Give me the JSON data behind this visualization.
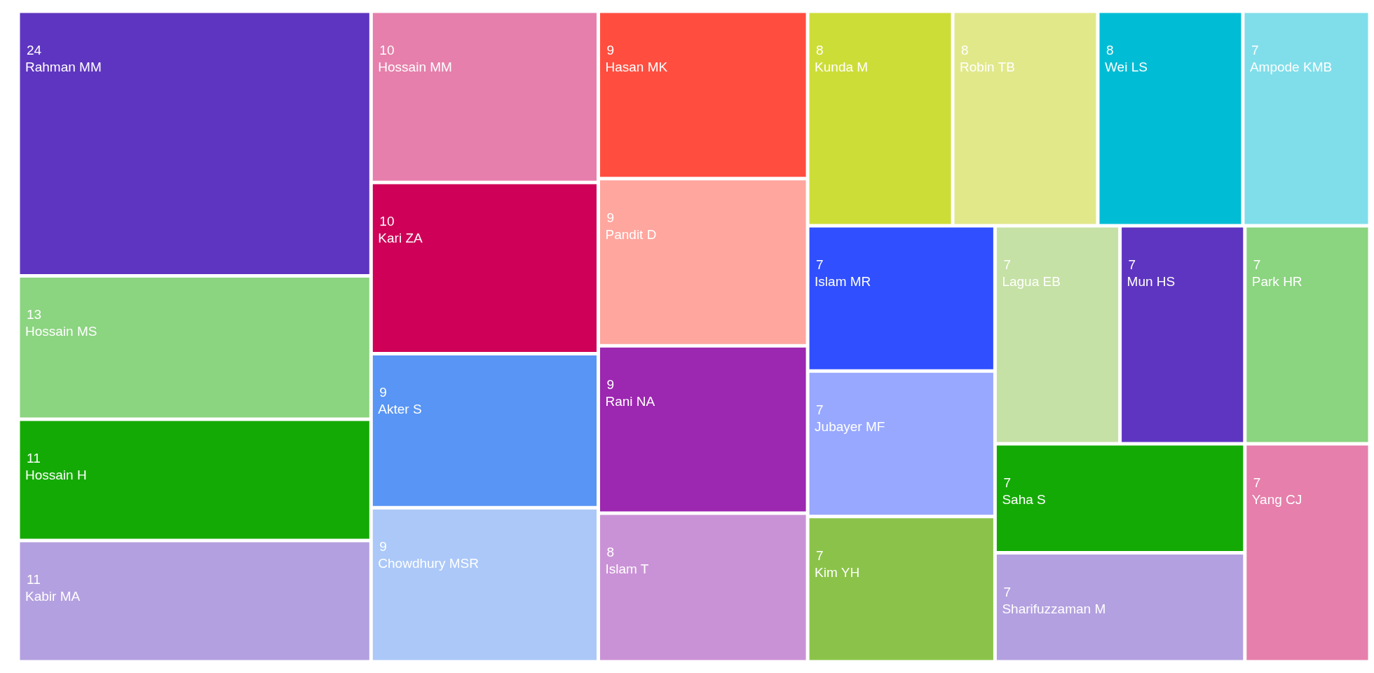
{
  "chart_data": {
    "type": "other",
    "data_labels": true,
    "categories": [
      "Rahman MM",
      "Hossain MS",
      "Hossain H",
      "Kabir MA",
      "Hossain MM",
      "Kari ZA",
      "Akter S",
      "Chowdhury MSR",
      "Hasan MK",
      "Pandit D",
      "Rani NA",
      "Islam T",
      "Kunda M",
      "Robin TB",
      "Wei LS",
      "Ampode KMB",
      "Islam MR",
      "Jubayer MF",
      "Kim YH",
      "Lagua EB",
      "Mun HS",
      "Park HR",
      "Saha S",
      "Sharifuzzaman M",
      "Yang CJ"
    ],
    "values": [
      24,
      13,
      11,
      11,
      10,
      10,
      9,
      9,
      9,
      9,
      9,
      8,
      8,
      8,
      8,
      7,
      7,
      7,
      7,
      7,
      7,
      7,
      7,
      7,
      7
    ],
    "colors": [
      "#5e35c0",
      "#8bd480",
      "#14aa05",
      "#b3a0e0",
      "#e67fab",
      "#cf0058",
      "#5895f4",
      "#abc8f8",
      "#ff4e40",
      "#ffa69e",
      "#9c27b0",
      "#ca92d6",
      "#cddd38",
      "#e1e88a",
      "#00bcd4",
      "#80deea",
      "#304ffe",
      "#98a8fe",
      "#8bc34a",
      "#c5e1a5",
      "#5e35c0",
      "#8bd480",
      "#14aa05",
      "#b3a0e0",
      "#e67fab"
    ]
  }
}
